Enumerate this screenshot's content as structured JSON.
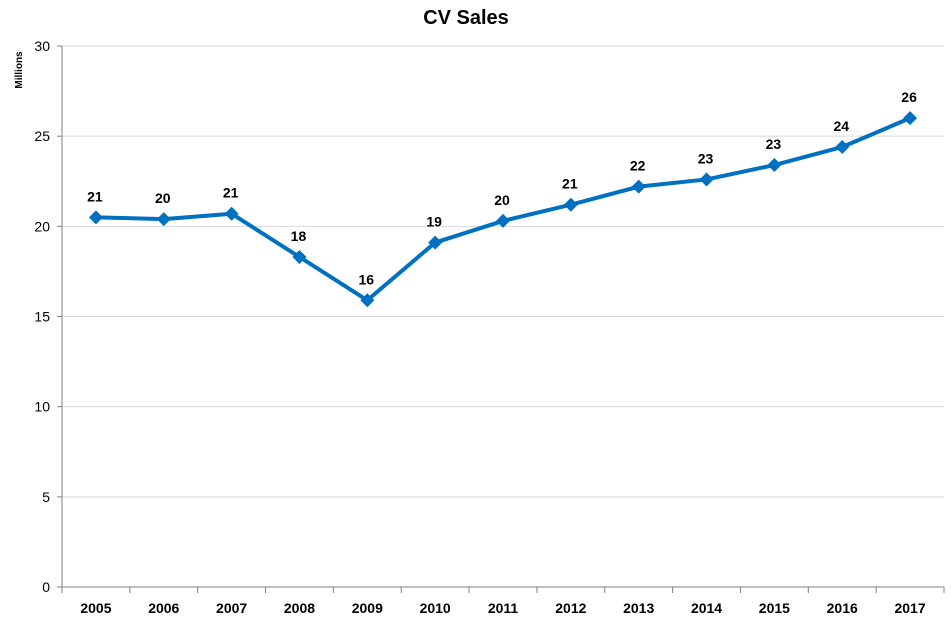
{
  "chart_data": {
    "type": "line",
    "title": "CV Sales",
    "xlabel": "",
    "ylabel": "Millions",
    "categories": [
      "2005",
      "2006",
      "2007",
      "2008",
      "2009",
      "2010",
      "2011",
      "2012",
      "2013",
      "2014",
      "2015",
      "2016",
      "2017"
    ],
    "series": [
      {
        "values": [
          20.5,
          20.4,
          20.7,
          18.3,
          15.9,
          19.1,
          20.3,
          21.2,
          22.2,
          22.6,
          23.4,
          24.4,
          26.0
        ],
        "data_labels": [
          "21",
          "20",
          "21",
          "18",
          "16",
          "19",
          "20",
          "21",
          "22",
          "23",
          "23",
          "24",
          "26"
        ],
        "color": "#0070c0"
      }
    ],
    "ylim": [
      0,
      30
    ],
    "yticks": [
      "0",
      "5",
      "10",
      "15",
      "20",
      "25",
      "30"
    ],
    "grid": true,
    "legend": "none",
    "marker": "diamond"
  }
}
